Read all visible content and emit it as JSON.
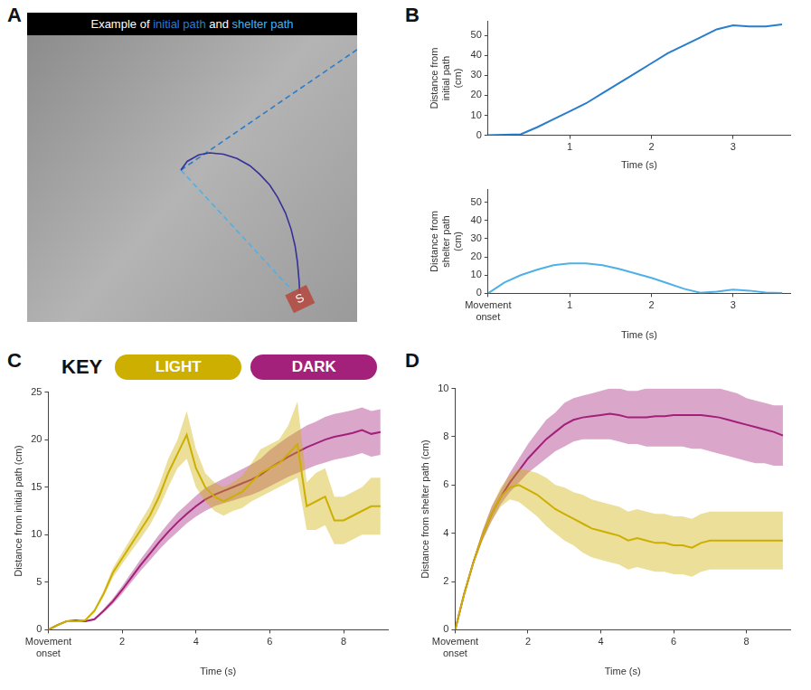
{
  "chart_data": [
    {
      "panel": "A",
      "type": "trajectory",
      "title": "Example of initial path and shelter path",
      "tick_labels": false,
      "grid": false,
      "xlim": [
        0,
        100
      ],
      "ylim": [
        0,
        100
      ],
      "series": [
        {
          "color": "#35309a",
          "x": [
            46.6,
            48.5,
            52,
            55.3,
            59.5,
            63.6,
            67.5,
            70.4,
            73.5,
            75.9,
            78.3,
            80,
            81.2,
            81.9,
            82.4,
            82.7
          ],
          "values": [
            53,
            56,
            58.3,
            59,
            58.5,
            57,
            54.5,
            51.6,
            47.8,
            43.5,
            38,
            32.3,
            26.5,
            21,
            14.5,
            8
          ]
        },
        {
          "name": "initial path",
          "color": "#2a7ccc",
          "line_style": "dashed",
          "x": [
            46.6,
            100
          ],
          "values": [
            53,
            95
          ]
        },
        {
          "name": "shelter path",
          "color": "#4fb0e8",
          "line_style": "dashed",
          "x": [
            46.6,
            82.7
          ],
          "values": [
            53,
            8
          ]
        }
      ],
      "annotations": [
        {
          "text": "S",
          "x": 82.7,
          "y": 8,
          "color": "#b5493e"
        }
      ]
    },
    {
      "panel": "B",
      "type": "line",
      "grid": false,
      "xlabel": "Time (s)",
      "ylabel": "Distance from initial path (cm)",
      "xlim": [
        0,
        3.7
      ],
      "xticks": [
        1,
        2,
        3
      ],
      "ylim": [
        0,
        57
      ],
      "yticks": [
        0,
        10,
        20,
        30,
        40,
        50
      ],
      "x": [
        0,
        0.2,
        0.4,
        0.6,
        0.8,
        1.0,
        1.2,
        1.4,
        1.6,
        1.8,
        2.0,
        2.2,
        2.4,
        2.6,
        2.8,
        3.0,
        3.2,
        3.4,
        3.6
      ],
      "series": [
        {
          "color": "#2a7ccc",
          "values": [
            0,
            0.3,
            0.5,
            4,
            8,
            12,
            16,
            21,
            26,
            31,
            36,
            41,
            45,
            49,
            53,
            55,
            54.5,
            54.5,
            55.5
          ]
        }
      ]
    },
    {
      "type": "line",
      "grid": false,
      "xlabel": "Time (s)",
      "ylabel": "Distance from shelter path (cm)",
      "xlim": [
        0,
        3.7
      ],
      "xticks": [
        {
          "value": 0,
          "label": "Movement onset"
        },
        1,
        2,
        3
      ],
      "ylim": [
        0,
        57
      ],
      "yticks": [
        0,
        10,
        20,
        30,
        40,
        50
      ],
      "x": [
        0,
        0.2,
        0.4,
        0.6,
        0.8,
        1.0,
        1.2,
        1.4,
        1.6,
        1.8,
        2.0,
        2.2,
        2.4,
        2.6,
        2.8,
        3.0,
        3.2,
        3.4,
        3.6
      ],
      "series": [
        {
          "color": "#4fb0e8",
          "values": [
            0,
            6,
            10,
            13,
            15.5,
            16.5,
            16.5,
            15.5,
            13.5,
            11,
            8.5,
            5.5,
            2.5,
            0.3,
            1,
            2,
            1.5,
            0.5,
            0.2
          ]
        }
      ]
    },
    {
      "panel": "C",
      "type": "line",
      "grid": false,
      "legend": "top",
      "legend_title": "KEY",
      "xlabel": "Time (s)",
      "ylabel": "Distance from initial path (cm)",
      "xlim": [
        0,
        9.2
      ],
      "xticks": [
        {
          "value": 0,
          "label": "Movement onset"
        },
        2,
        4,
        6,
        8
      ],
      "ylim": [
        0,
        25
      ],
      "yticks": [
        0,
        5,
        10,
        15,
        20,
        25
      ],
      "x": [
        0,
        0.25,
        0.5,
        0.75,
        1,
        1.25,
        1.5,
        1.75,
        2,
        2.25,
        2.5,
        2.75,
        3,
        3.25,
        3.5,
        3.75,
        4,
        4.25,
        4.5,
        4.75,
        5,
        5.25,
        5.5,
        5.75,
        6,
        6.25,
        6.5,
        6.75,
        7,
        7.25,
        7.5,
        7.75,
        8,
        8.25,
        8.5,
        8.75,
        9
      ],
      "series": [
        {
          "name": "LIGHT",
          "color": "#ccaf00",
          "values": [
            0,
            0.5,
            0.9,
            0.9,
            1.0,
            2.0,
            3.8,
            6,
            7.5,
            9,
            10.5,
            12,
            14,
            16.5,
            18.5,
            20.5,
            17,
            15,
            14,
            13.5,
            14,
            14.5,
            15.5,
            16.5,
            17,
            17.5,
            18.5,
            19.5,
            13,
            13.5,
            14,
            11.5,
            11.5,
            12,
            12.5,
            13,
            13
          ],
          "lower": [
            0,
            0.4,
            0.8,
            0.8,
            0.9,
            1.8,
            3.5,
            5.5,
            6.9,
            8.3,
            9.6,
            11,
            12.8,
            15,
            17,
            18,
            15,
            13.5,
            12.5,
            12,
            12.5,
            12.8,
            13.5,
            14,
            14.5,
            15,
            15.5,
            16,
            10.5,
            10.5,
            11,
            9,
            9,
            9.5,
            10,
            10,
            10
          ],
          "upper": [
            0,
            0.6,
            1,
            1,
            1.1,
            2.2,
            4.1,
            6.5,
            8.1,
            9.7,
            11.4,
            13,
            15.2,
            18,
            20,
            23,
            19,
            16.5,
            15.5,
            15,
            15.5,
            16.2,
            17.5,
            19,
            19.5,
            20,
            21.5,
            24,
            15.5,
            16.5,
            17,
            14,
            14,
            14.5,
            15,
            16,
            16
          ]
        },
        {
          "name": "DARK",
          "color": "#a3217a",
          "values": [
            0,
            0.5,
            0.9,
            1.0,
            0.9,
            1.1,
            2,
            3,
            4.2,
            5.5,
            6.8,
            8,
            9.2,
            10.3,
            11.3,
            12.2,
            13,
            13.7,
            14.2,
            14.6,
            15,
            15.4,
            15.8,
            16.3,
            17,
            17.6,
            18.2,
            18.7,
            19.2,
            19.6,
            20,
            20.3,
            20.5,
            20.7,
            21,
            20.6,
            20.8
          ],
          "lower": [
            0,
            0.45,
            0.85,
            0.95,
            0.85,
            1.0,
            1.8,
            2.7,
            3.8,
            5,
            6.2,
            7.3,
            8.4,
            9.4,
            10.3,
            11.2,
            11.9,
            12.5,
            13,
            13.3,
            13.6,
            13.9,
            14.2,
            14.6,
            15.1,
            15.6,
            16.1,
            16.5,
            16.9,
            17.3,
            17.6,
            17.9,
            18.1,
            18.3,
            18.6,
            18.2,
            18.4
          ],
          "upper": [
            0,
            0.55,
            0.95,
            1.05,
            0.95,
            1.2,
            2.2,
            3.3,
            4.6,
            6,
            7.4,
            8.7,
            10,
            11.2,
            12.3,
            13.2,
            14.1,
            14.9,
            15.4,
            15.9,
            16.4,
            16.9,
            17.4,
            18,
            18.9,
            19.6,
            20.3,
            20.9,
            21.5,
            21.9,
            22.4,
            22.7,
            22.9,
            23.1,
            23.4,
            23,
            23.2
          ]
        }
      ]
    },
    {
      "panel": "D",
      "type": "line",
      "grid": false,
      "xlabel": "Time (s)",
      "ylabel": "Distance from shelter path (cm)",
      "xlim": [
        0,
        9.2
      ],
      "xticks": [
        {
          "value": 0,
          "label": "Movement onset"
        },
        2,
        4,
        6,
        8
      ],
      "ylim": [
        0,
        10
      ],
      "yticks": [
        0,
        2,
        4,
        6,
        8,
        10
      ],
      "x": [
        0,
        0.25,
        0.5,
        0.75,
        1,
        1.25,
        1.5,
        1.75,
        2,
        2.25,
        2.5,
        2.75,
        3,
        3.25,
        3.5,
        3.75,
        4,
        4.25,
        4.5,
        4.75,
        5,
        5.25,
        5.5,
        5.75,
        6,
        6.25,
        6.5,
        6.75,
        7,
        7.25,
        7.5,
        7.75,
        8,
        8.25,
        8.5,
        8.75,
        9
      ],
      "series": [
        {
          "name": "LIGHT",
          "color": "#ccaf00",
          "values": [
            0,
            1.5,
            2.8,
            3.9,
            4.8,
            5.5,
            5.9,
            6,
            5.8,
            5.6,
            5.3,
            5,
            4.8,
            4.6,
            4.4,
            4.2,
            4.1,
            4,
            3.9,
            3.7,
            3.8,
            3.7,
            3.6,
            3.6,
            3.5,
            3.5,
            3.4,
            3.6,
            3.7,
            3.7,
            3.7,
            3.7,
            3.7,
            3.7,
            3.7,
            3.7,
            3.7
          ],
          "lower": [
            0,
            1.45,
            2.7,
            3.7,
            4.5,
            5.1,
            5.4,
            5.3,
            5.0,
            4.7,
            4.3,
            4.0,
            3.7,
            3.5,
            3.2,
            3.0,
            2.9,
            2.8,
            2.7,
            2.5,
            2.6,
            2.5,
            2.4,
            2.4,
            2.3,
            2.3,
            2.2,
            2.4,
            2.5,
            2.5,
            2.5,
            2.5,
            2.5,
            2.5,
            2.5,
            2.5,
            2.5
          ],
          "upper": [
            0,
            1.55,
            2.9,
            4.1,
            5.1,
            5.9,
            6.4,
            6.7,
            6.6,
            6.5,
            6.3,
            6,
            5.9,
            5.7,
            5.6,
            5.4,
            5.3,
            5.2,
            5.1,
            4.9,
            5,
            4.9,
            4.8,
            4.8,
            4.7,
            4.7,
            4.6,
            4.8,
            4.9,
            4.9,
            4.9,
            4.9,
            4.9,
            4.9,
            4.9,
            4.9,
            4.9
          ]
        },
        {
          "name": "DARK",
          "color": "#a3217a",
          "values": [
            0,
            1.5,
            2.8,
            3.9,
            4.8,
            5.5,
            6.1,
            6.6,
            7.1,
            7.5,
            7.9,
            8.2,
            8.5,
            8.7,
            8.8,
            8.85,
            8.9,
            8.95,
            8.9,
            8.8,
            8.8,
            8.8,
            8.85,
            8.85,
            8.9,
            8.9,
            8.9,
            8.9,
            8.85,
            8.8,
            8.7,
            8.6,
            8.5,
            8.4,
            8.3,
            8.2,
            8.05
          ],
          "lower": [
            0,
            1.45,
            2.7,
            3.7,
            4.5,
            5.2,
            5.7,
            6.1,
            6.5,
            6.8,
            7.1,
            7.4,
            7.6,
            7.8,
            7.9,
            7.9,
            7.9,
            7.9,
            7.8,
            7.7,
            7.7,
            7.6,
            7.6,
            7.6,
            7.6,
            7.6,
            7.5,
            7.5,
            7.4,
            7.3,
            7.2,
            7.1,
            7.0,
            6.9,
            6.9,
            6.8,
            6.8
          ],
          "upper": [
            0,
            1.55,
            2.9,
            4.1,
            5.1,
            5.8,
            6.5,
            7.1,
            7.7,
            8.2,
            8.7,
            9.0,
            9.4,
            9.6,
            9.7,
            9.8,
            9.9,
            10,
            10,
            9.9,
            9.9,
            10,
            10,
            10,
            10,
            10,
            10,
            10,
            10,
            10,
            9.9,
            9.8,
            9.6,
            9.5,
            9.4,
            9.3,
            9.3
          ]
        }
      ]
    }
  ]
}
